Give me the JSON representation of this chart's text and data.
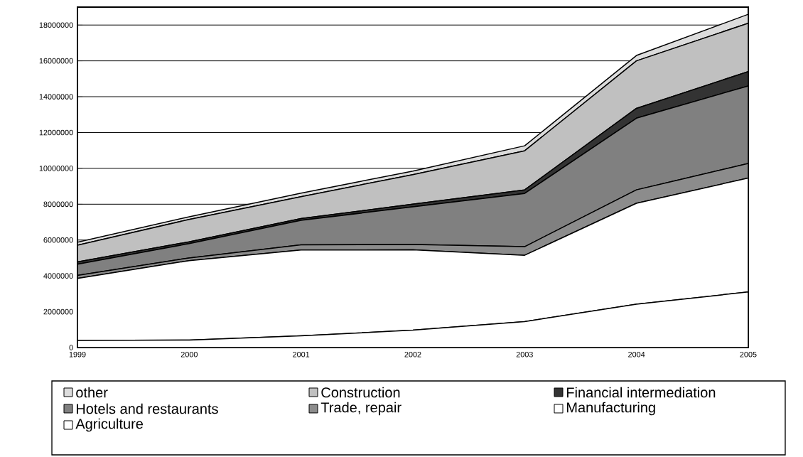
{
  "chart_data": {
    "type": "area",
    "stacked": true,
    "categories": [
      "1999",
      "2000",
      "2001",
      "2002",
      "2003",
      "2004",
      "2005"
    ],
    "series": [
      {
        "name": "Agriculture",
        "color": "#ffffff",
        "values": [
          400000,
          420000,
          650000,
          970000,
          1450000,
          2420000,
          3100000
        ]
      },
      {
        "name": "Manufacturing",
        "color": "#ffffff",
        "values": [
          3460000,
          4430000,
          4790000,
          4480000,
          3700000,
          5630000,
          6360000
        ]
      },
      {
        "name": "Trade, repair",
        "color": "#8c8c8c",
        "values": [
          170000,
          150000,
          290000,
          300000,
          480000,
          750000,
          810000
        ]
      },
      {
        "name": "Hotels and restaurants",
        "color": "#808080",
        "values": [
          620000,
          800000,
          1370000,
          2100000,
          2970000,
          4000000,
          4330000
        ]
      },
      {
        "name": "Financial intermediation",
        "color": "#333333",
        "values": [
          130000,
          100000,
          100000,
          150000,
          200000,
          550000,
          800000
        ]
      },
      {
        "name": "Construction",
        "color": "#c0c0c0",
        "values": [
          930000,
          1250000,
          1220000,
          1650000,
          2180000,
          2650000,
          2700000
        ]
      },
      {
        "name": "other",
        "color": "#dcdcdc",
        "values": [
          170000,
          150000,
          200000,
          200000,
          280000,
          300000,
          500000
        ]
      }
    ],
    "ylim": [
      0,
      19000000
    ],
    "yticks": [
      0,
      2000000,
      4000000,
      6000000,
      8000000,
      10000000,
      12000000,
      14000000,
      16000000,
      18000000
    ],
    "grid": "y",
    "legend": "bottom"
  }
}
